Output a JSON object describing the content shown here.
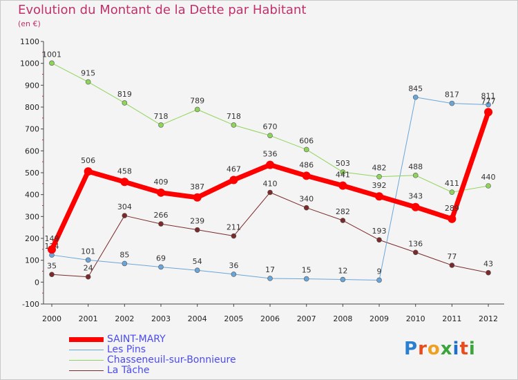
{
  "title": "Evolution du Montant de la Dette par Habitant",
  "subtitle": "(en €)",
  "logo": {
    "text": "Proxiti",
    "letters": [
      "P",
      "r",
      "o",
      "x",
      "i",
      "t",
      "i"
    ],
    "colors": [
      "#2a7fd0",
      "#e84c1c",
      "#f0a020",
      "#3aa53a",
      "#1f6fc8",
      "#e84c1c",
      "#3aa53a"
    ]
  },
  "chart_data": {
    "type": "line",
    "categories": [
      "2000",
      "2001",
      "2002",
      "2003",
      "2004",
      "2005",
      "2006",
      "2007",
      "2008",
      "2009",
      "2010",
      "2011",
      "2012"
    ],
    "yticks": [
      "1100",
      "1000",
      "900",
      "800",
      "700",
      "600",
      "500",
      "400",
      "300",
      "200",
      "100",
      "0",
      "-100"
    ],
    "ylim": [
      -100,
      1100
    ],
    "grid": false,
    "legend_position": "bottom-left",
    "series": [
      {
        "name": "La Tâche",
        "color": "#7a2a2a",
        "width": 1,
        "marker": 3.5,
        "values": [
          35,
          24,
          304,
          266,
          239,
          211,
          410,
          340,
          282,
          193,
          136,
          77,
          43
        ],
        "labels": [
          "35",
          "24",
          "304",
          "266",
          "239",
          "211",
          "410",
          "340",
          "282",
          "193",
          "136",
          "77",
          "43"
        ]
      },
      {
        "name": "Les Pins",
        "color": "#6aa5d8",
        "width": 1,
        "marker": 3.5,
        "values": [
          124,
          101,
          85,
          69,
          54,
          36,
          17,
          15,
          12,
          9,
          845,
          817,
          811
        ],
        "labels": [
          "124",
          "101",
          "85",
          "69",
          "54",
          "36",
          "17",
          "15",
          "12",
          "9",
          "845",
          "817",
          "811"
        ]
      },
      {
        "name": "Chasseneuil-sur-Bonnieure",
        "color": "#8fd45a",
        "width": 1,
        "marker": 3.5,
        "values": [
          1001,
          915,
          819,
          718,
          789,
          718,
          670,
          606,
          503,
          482,
          488,
          411,
          440
        ],
        "labels": [
          "1001",
          "915",
          "819",
          "718",
          "789",
          "718",
          "670",
          "606",
          "503",
          "482",
          "488",
          "411",
          "440"
        ]
      },
      {
        "name": "SAINT-MARY",
        "color": "#ff0000",
        "width": 7,
        "marker": 6,
        "values": [
          149,
          506,
          458,
          409,
          387,
          467,
          536,
          486,
          441,
          392,
          343,
          289,
          777
        ],
        "labels": [
          "149",
          "506",
          "458",
          "409",
          "387",
          "467",
          "536",
          "486",
          "441",
          "392",
          "343",
          "289",
          "777"
        ]
      }
    ],
    "legend": [
      {
        "name": "SAINT-MARY",
        "color": "#ff0000"
      },
      {
        "name": "Les Pins",
        "color": "#6aa5d8"
      },
      {
        "name": "Chasseneuil-sur-Bonnieure",
        "color": "#8fd45a"
      },
      {
        "name": "La Tâche",
        "color": "#7a2a2a"
      }
    ]
  }
}
